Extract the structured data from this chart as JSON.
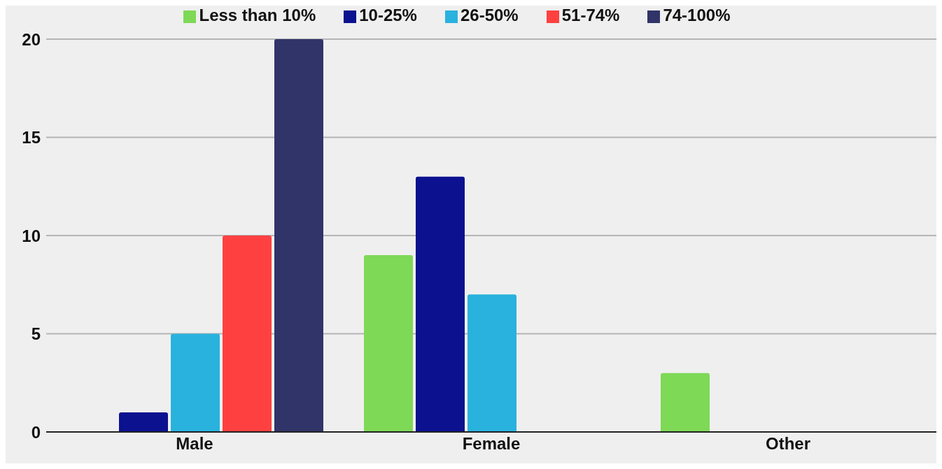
{
  "chart_data": {
    "type": "bar",
    "categories": [
      "Male",
      "Female",
      "Other"
    ],
    "series": [
      {
        "name": "Less than 10%",
        "color": "#7ed957",
        "values": [
          0,
          9,
          3
        ]
      },
      {
        "name": "10-25%",
        "color": "#0c1190",
        "values": [
          1,
          13,
          0
        ]
      },
      {
        "name": "26-50%",
        "color": "#29b2dd",
        "values": [
          5,
          7,
          0
        ]
      },
      {
        "name": "51-74%",
        "color": "#ff4040",
        "values": [
          10,
          0,
          0
        ]
      },
      {
        "name": "74-100%",
        "color": "#313468",
        "values": [
          20,
          0,
          0
        ]
      }
    ],
    "ylim": [
      0,
      20
    ],
    "yticks": [
      0,
      5,
      10,
      15,
      20
    ],
    "grid": "y",
    "legend": "top"
  }
}
